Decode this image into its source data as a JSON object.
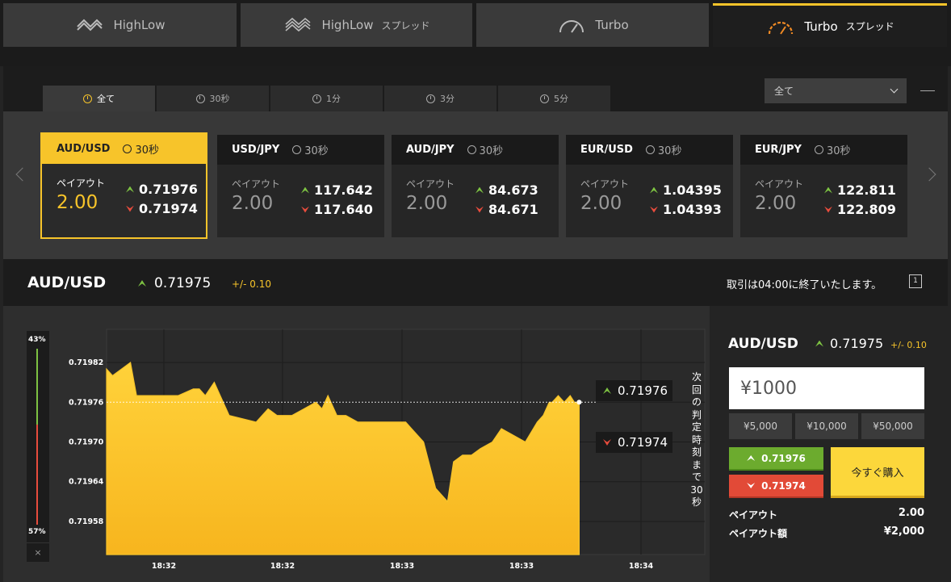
{
  "top_tabs": [
    {
      "label": "HighLow",
      "suffix": "",
      "icon": "highlow-icon"
    },
    {
      "label": "HighLow",
      "suffix": "スプレッド",
      "icon": "highlow-spread-icon"
    },
    {
      "label": "Turbo",
      "suffix": "",
      "icon": "turbo-gauge-icon"
    },
    {
      "label": "Turbo",
      "suffix": "スプレッド",
      "icon": "turbo-spread-gauge-icon",
      "active": true
    }
  ],
  "duration_tabs": [
    "全て",
    "30秒",
    "1分",
    "3分",
    "5分"
  ],
  "filter_select": {
    "value": "全て"
  },
  "cards": [
    {
      "pair": "AUD/USD",
      "duration": "30秒",
      "payout_label": "ペイアウト",
      "payout": "2.00",
      "high": "0.71976",
      "low": "0.71974",
      "active": true
    },
    {
      "pair": "USD/JPY",
      "duration": "30秒",
      "payout_label": "ペイアウト",
      "payout": "2.00",
      "high": "117.642",
      "low": "117.640"
    },
    {
      "pair": "AUD/JPY",
      "duration": "30秒",
      "payout_label": "ペイアウト",
      "payout": "2.00",
      "high": "84.673",
      "low": "84.671"
    },
    {
      "pair": "EUR/USD",
      "duration": "30秒",
      "payout_label": "ペイアウト",
      "payout": "2.00",
      "high": "1.04395",
      "low": "1.04393"
    },
    {
      "pair": "EUR/JPY",
      "duration": "30秒",
      "payout_label": "ペイアウト",
      "payout": "2.00",
      "high": "122.811",
      "low": "122.809"
    }
  ],
  "asset": {
    "pair": "AUD/USD",
    "rate": "0.71975",
    "spread": "+/- 0.10",
    "close_message": "取引は04:00に終了いたします。",
    "chart_icon_text": "1"
  },
  "sentiment": {
    "high_pct": "43%",
    "low_pct": "57%",
    "close": "×"
  },
  "chart_labels": {
    "high_price": "0.71976",
    "low_price": "0.71974",
    "next_judgement": "次回の判定時刻まで30秒"
  },
  "chart_data": {
    "type": "area",
    "title": "",
    "xlabel": "",
    "ylabel": "",
    "ylim": [
      0.71953,
      0.71987
    ],
    "y_ticks": [
      0.71982,
      0.71976,
      0.7197,
      0.71964,
      0.71958
    ],
    "y_tick_labels": [
      "0.71982",
      "0.71976",
      "0.71970",
      "0.71964",
      "0.71958"
    ],
    "x_tick_labels": [
      "18:32",
      "18:32",
      "18:33",
      "18:33",
      "18:34"
    ],
    "x_range_minutes": [
      0,
      5
    ],
    "grid": true,
    "color": "#f7c42a",
    "reference_line": 0.71976,
    "series": [
      {
        "x": [
          0,
          0.1,
          0.25,
          0.4,
          0.5,
          0.8,
          1.2,
          1.45,
          1.55,
          1.65,
          1.8,
          1.9,
          2.05,
          2.5,
          2.7,
          2.85,
          3.1,
          3.3,
          3.5,
          3.6,
          3.7,
          3.85,
          4.0,
          4.2,
          4.5,
          4.8,
          5.0,
          5.1,
          5.3,
          5.5,
          5.6,
          5.7,
          5.8,
          5.95,
          6.1,
          6.25,
          6.45,
          6.6,
          6.8,
          7.0,
          7.2,
          7.3,
          7.4,
          7.45,
          7.55,
          7.65,
          7.75,
          7.82,
          7.9
        ],
        "y": [
          0.71981,
          0.7198,
          0.71981,
          0.71982,
          0.71977,
          0.71977,
          0.71977,
          0.71978,
          0.71978,
          0.71977,
          0.71979,
          0.71977,
          0.71974,
          0.71973,
          0.71975,
          0.71974,
          0.71974,
          0.71975,
          0.71976,
          0.71975,
          0.71977,
          0.71974,
          0.71974,
          0.71973,
          0.71973,
          0.71973,
          0.71973,
          0.71972,
          0.7197,
          0.71963,
          0.71962,
          0.71961,
          0.71967,
          0.71968,
          0.71968,
          0.71969,
          0.7197,
          0.71972,
          0.71971,
          0.7197,
          0.71973,
          0.71974,
          0.71976,
          0.71976,
          0.71977,
          0.71976,
          0.71977,
          0.71976,
          0.71976
        ]
      }
    ]
  },
  "trade": {
    "pair": "AUD/USD",
    "rate": "0.71975",
    "spread": "+/- 0.10",
    "amount": "¥1000",
    "quick_amounts": [
      "¥5,000",
      "¥10,000",
      "¥50,000"
    ],
    "high_button": "0.71976",
    "low_button": "0.71974",
    "buy_button": "今すぐ購入",
    "payout_label": "ペイアウト",
    "payout_value": "2.00",
    "payout_amount_label": "ペイアウト額",
    "payout_amount_value": "¥2,000"
  },
  "colors": {
    "accent": "#f7c42a",
    "up": "#7dc242",
    "down": "#e84c3d"
  }
}
